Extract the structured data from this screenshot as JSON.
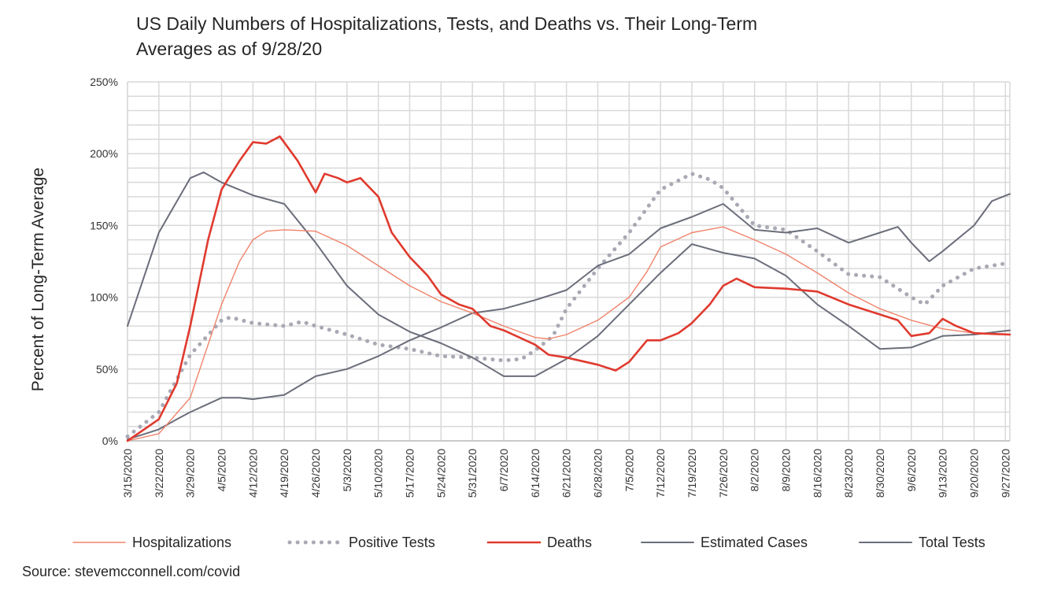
{
  "title_line1": "US Daily Numbers of Hospitalizations, Tests, and Deaths vs. Their Long-Term",
  "title_line2": "Averages as of 9/28/20",
  "source": "Source: stevemcconnell.com/covid",
  "chart_data": {
    "type": "line",
    "ylabel": "Percent of Long-Term Average",
    "xlabel": "",
    "ylim": [
      0,
      250
    ],
    "yticks": [
      0,
      50,
      100,
      150,
      200,
      250
    ],
    "ytick_labels": [
      "0%",
      "50%",
      "100%",
      "150%",
      "200%",
      "250%"
    ],
    "x_start": "3/15/2020",
    "x_end": "9/28/2020",
    "xtick_labels": [
      "3/15/2020",
      "3/22/2020",
      "3/29/2020",
      "4/5/2020",
      "4/12/2020",
      "4/19/2020",
      "4/26/2020",
      "5/3/2020",
      "5/10/2020",
      "5/17/2020",
      "5/24/2020",
      "5/31/2020",
      "6/7/2020",
      "6/14/2020",
      "6/21/2020",
      "6/28/2020",
      "7/5/2020",
      "7/12/2020",
      "7/19/2020",
      "7/26/2020",
      "8/2/2020",
      "8/9/2020",
      "8/16/2020",
      "8/23/2020",
      "8/30/2020",
      "9/6/2020",
      "9/13/2020",
      "9/20/2020",
      "9/27/2020"
    ],
    "grid": true,
    "legend_position": "bottom",
    "series": [
      {
        "name": "Hospitalizations",
        "color": "#f0836b",
        "style": "thin",
        "points": [
          [
            "3/15/2020",
            0
          ],
          [
            "3/22/2020",
            5
          ],
          [
            "3/29/2020",
            30
          ],
          [
            "4/5/2020",
            95
          ],
          [
            "4/9/2020",
            125
          ],
          [
            "4/12/2020",
            140
          ],
          [
            "4/15/2020",
            146
          ],
          [
            "4/19/2020",
            147
          ],
          [
            "4/26/2020",
            146
          ],
          [
            "5/3/2020",
            136
          ],
          [
            "5/10/2020",
            122
          ],
          [
            "5/17/2020",
            108
          ],
          [
            "5/24/2020",
            97
          ],
          [
            "5/31/2020",
            89
          ],
          [
            "6/7/2020",
            80
          ],
          [
            "6/14/2020",
            72
          ],
          [
            "6/17/2020",
            71
          ],
          [
            "6/21/2020",
            74
          ],
          [
            "6/28/2020",
            84
          ],
          [
            "7/5/2020",
            100
          ],
          [
            "7/9/2020",
            118
          ],
          [
            "7/12/2020",
            135
          ],
          [
            "7/19/2020",
            145
          ],
          [
            "7/26/2020",
            149
          ],
          [
            "8/2/2020",
            140
          ],
          [
            "8/9/2020",
            130
          ],
          [
            "8/16/2020",
            117
          ],
          [
            "8/23/2020",
            103
          ],
          [
            "8/30/2020",
            92
          ],
          [
            "9/6/2020",
            84
          ],
          [
            "9/13/2020",
            78
          ],
          [
            "9/20/2020",
            75
          ],
          [
            "9/28/2020",
            74
          ]
        ]
      },
      {
        "name": "Positive Tests",
        "color": "#a9a9b4",
        "style": "dotted",
        "points": [
          [
            "3/15/2020",
            3
          ],
          [
            "3/22/2020",
            20
          ],
          [
            "3/29/2020",
            60
          ],
          [
            "4/5/2020",
            84
          ],
          [
            "4/7/2020",
            86
          ],
          [
            "4/12/2020",
            82
          ],
          [
            "4/19/2020",
            80
          ],
          [
            "4/23/2020",
            83
          ],
          [
            "4/26/2020",
            80
          ],
          [
            "5/3/2020",
            74
          ],
          [
            "5/10/2020",
            67
          ],
          [
            "5/17/2020",
            64
          ],
          [
            "5/24/2020",
            59
          ],
          [
            "5/31/2020",
            58
          ],
          [
            "6/7/2020",
            56
          ],
          [
            "6/11/2020",
            57
          ],
          [
            "6/14/2020",
            63
          ],
          [
            "6/18/2020",
            73
          ],
          [
            "6/21/2020",
            92
          ],
          [
            "6/28/2020",
            120
          ],
          [
            "7/5/2020",
            145
          ],
          [
            "7/12/2020",
            175
          ],
          [
            "7/19/2020",
            186
          ],
          [
            "7/23/2020",
            182
          ],
          [
            "7/26/2020",
            176
          ],
          [
            "8/2/2020",
            150
          ],
          [
            "8/9/2020",
            147
          ],
          [
            "8/16/2020",
            132
          ],
          [
            "8/23/2020",
            116
          ],
          [
            "8/30/2020",
            114
          ],
          [
            "9/6/2020",
            100
          ],
          [
            "9/9/2020",
            95
          ],
          [
            "9/13/2020",
            108
          ],
          [
            "9/20/2020",
            120
          ],
          [
            "9/28/2020",
            124
          ]
        ]
      },
      {
        "name": "Deaths",
        "color": "#e03a2e",
        "style": "thick",
        "points": [
          [
            "3/15/2020",
            0
          ],
          [
            "3/22/2020",
            15
          ],
          [
            "3/26/2020",
            40
          ],
          [
            "3/29/2020",
            80
          ],
          [
            "4/2/2020",
            140
          ],
          [
            "4/5/2020",
            175
          ],
          [
            "4/9/2020",
            195
          ],
          [
            "4/12/2020",
            208
          ],
          [
            "4/15/2020",
            207
          ],
          [
            "4/18/2020",
            212
          ],
          [
            "4/22/2020",
            195
          ],
          [
            "4/26/2020",
            173
          ],
          [
            "4/28/2020",
            186
          ],
          [
            "5/1/2020",
            183
          ],
          [
            "5/3/2020",
            180
          ],
          [
            "5/6/2020",
            183
          ],
          [
            "5/10/2020",
            170
          ],
          [
            "5/13/2020",
            145
          ],
          [
            "5/17/2020",
            128
          ],
          [
            "5/21/2020",
            115
          ],
          [
            "5/24/2020",
            102
          ],
          [
            "5/28/2020",
            95
          ],
          [
            "5/31/2020",
            92
          ],
          [
            "6/4/2020",
            80
          ],
          [
            "6/7/2020",
            77
          ],
          [
            "6/14/2020",
            67
          ],
          [
            "6/17/2020",
            60
          ],
          [
            "6/21/2020",
            58
          ],
          [
            "6/28/2020",
            53
          ],
          [
            "7/2/2020",
            49
          ],
          [
            "7/5/2020",
            55
          ],
          [
            "7/9/2020",
            70
          ],
          [
            "7/12/2020",
            70
          ],
          [
            "7/16/2020",
            75
          ],
          [
            "7/19/2020",
            82
          ],
          [
            "7/23/2020",
            95
          ],
          [
            "7/26/2020",
            108
          ],
          [
            "7/29/2020",
            113
          ],
          [
            "8/2/2020",
            107
          ],
          [
            "8/9/2020",
            106
          ],
          [
            "8/16/2020",
            104
          ],
          [
            "8/23/2020",
            95
          ],
          [
            "8/30/2020",
            88
          ],
          [
            "9/3/2020",
            84
          ],
          [
            "9/6/2020",
            73
          ],
          [
            "9/10/2020",
            75
          ],
          [
            "9/13/2020",
            85
          ],
          [
            "9/16/2020",
            80
          ],
          [
            "9/20/2020",
            75
          ],
          [
            "9/28/2020",
            74
          ]
        ]
      },
      {
        "name": "Estimated Cases",
        "color": "#6b6e7a",
        "style": "normal",
        "points": [
          [
            "3/15/2020",
            1
          ],
          [
            "3/22/2020",
            8
          ],
          [
            "3/26/2020",
            15
          ],
          [
            "3/29/2020",
            20
          ],
          [
            "4/5/2020",
            30
          ],
          [
            "4/9/2020",
            30
          ],
          [
            "4/12/2020",
            29
          ],
          [
            "4/19/2020",
            32
          ],
          [
            "4/26/2020",
            45
          ],
          [
            "5/3/2020",
            50
          ],
          [
            "5/10/2020",
            59
          ],
          [
            "5/17/2020",
            70
          ],
          [
            "5/24/2020",
            79
          ],
          [
            "5/31/2020",
            89
          ],
          [
            "6/7/2020",
            92
          ],
          [
            "6/14/2020",
            98
          ],
          [
            "6/21/2020",
            105
          ],
          [
            "6/28/2020",
            122
          ],
          [
            "7/5/2020",
            130
          ],
          [
            "7/12/2020",
            148
          ],
          [
            "7/19/2020",
            156
          ],
          [
            "7/26/2020",
            165
          ],
          [
            "8/2/2020",
            147
          ],
          [
            "8/9/2020",
            145
          ],
          [
            "8/16/2020",
            148
          ],
          [
            "8/23/2020",
            138
          ],
          [
            "8/30/2020",
            145
          ],
          [
            "9/3/2020",
            149
          ],
          [
            "9/6/2020",
            138
          ],
          [
            "9/10/2020",
            125
          ],
          [
            "9/13/2020",
            132
          ],
          [
            "9/20/2020",
            150
          ],
          [
            "9/24/2020",
            167
          ],
          [
            "9/28/2020",
            172
          ]
        ]
      },
      {
        "name": "Total Tests",
        "color": "#6b6e7a",
        "style": "normal",
        "points": [
          [
            "3/15/2020",
            80
          ],
          [
            "3/22/2020",
            145
          ],
          [
            "3/29/2020",
            183
          ],
          [
            "4/1/2020",
            187
          ],
          [
            "4/5/2020",
            180
          ],
          [
            "4/12/2020",
            171
          ],
          [
            "4/19/2020",
            165
          ],
          [
            "4/26/2020",
            138
          ],
          [
            "5/3/2020",
            108
          ],
          [
            "5/10/2020",
            88
          ],
          [
            "5/17/2020",
            76
          ],
          [
            "5/24/2020",
            68
          ],
          [
            "5/31/2020",
            58
          ],
          [
            "6/7/2020",
            45
          ],
          [
            "6/14/2020",
            45
          ],
          [
            "6/21/2020",
            57
          ],
          [
            "6/28/2020",
            73
          ],
          [
            "7/5/2020",
            95
          ],
          [
            "7/12/2020",
            117
          ],
          [
            "7/19/2020",
            137
          ],
          [
            "7/26/2020",
            131
          ],
          [
            "8/2/2020",
            127
          ],
          [
            "8/9/2020",
            115
          ],
          [
            "8/16/2020",
            95
          ],
          [
            "8/23/2020",
            80
          ],
          [
            "8/30/2020",
            64
          ],
          [
            "9/6/2020",
            65
          ],
          [
            "9/13/2020",
            73
          ],
          [
            "9/20/2020",
            74
          ],
          [
            "9/28/2020",
            77
          ]
        ]
      }
    ]
  }
}
